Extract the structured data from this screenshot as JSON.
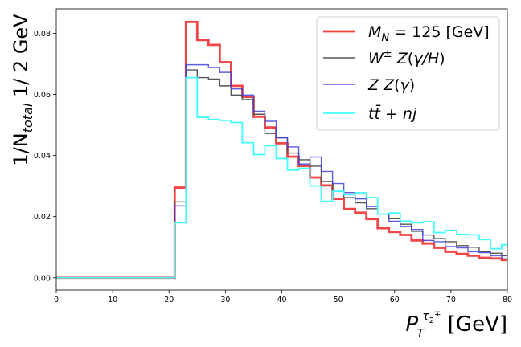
{
  "chart_data": {
    "type": "line",
    "step": true,
    "xlabel": "P_T^{τ2∓} [GeV]",
    "ylabel": "1/N_total 1/ 2 GeV",
    "xlim": [
      0,
      80
    ],
    "ylim": [
      -0.004,
      0.088
    ],
    "xticks": [
      0,
      10,
      20,
      30,
      40,
      50,
      60,
      70,
      80
    ],
    "yticks": [
      0.0,
      0.02,
      0.04,
      0.06,
      0.08
    ],
    "xtick_labels": [
      "0",
      "10",
      "20",
      "30",
      "40",
      "50",
      "60",
      "70",
      "80"
    ],
    "ytick_labels": [
      "0.00",
      "0.02",
      "0.04",
      "0.06",
      "0.08"
    ],
    "legend_position": "top-right",
    "grid": false,
    "x": [
      0,
      2,
      4,
      6,
      8,
      10,
      12,
      14,
      16,
      18,
      20,
      21,
      23,
      25,
      27,
      29,
      31,
      33,
      35,
      37,
      39,
      41,
      43,
      45,
      47,
      49,
      51,
      53,
      55,
      57,
      59,
      61,
      63,
      65,
      67,
      69,
      71,
      73,
      75,
      77,
      79,
      80
    ],
    "series": [
      {
        "name": "M_N = 125 [GeV]",
        "color": "#f03030",
        "width": 2.8,
        "opacity": 0.9,
        "values": [
          0,
          0,
          0,
          0,
          0,
          0,
          0,
          0,
          0,
          0,
          0,
          0.0295,
          0.0837,
          0.0778,
          0.0762,
          0.0705,
          0.0628,
          0.0592,
          0.0527,
          0.0492,
          0.044,
          0.0396,
          0.0366,
          0.0328,
          0.0302,
          0.0258,
          0.0225,
          0.0213,
          0.0192,
          0.0162,
          0.015,
          0.014,
          0.0122,
          0.0112,
          0.0098,
          0.0085,
          0.0078,
          0.0072,
          0.0065,
          0.0063,
          0.0058,
          0.0058
        ]
      },
      {
        "name": "W± Z(γ/H)",
        "color": "#555555",
        "width": 1.4,
        "opacity": 1,
        "values": [
          0,
          0,
          0,
          0,
          0,
          0,
          0,
          0,
          0,
          0,
          0,
          0.0248,
          0.068,
          0.0655,
          0.065,
          0.0628,
          0.0598,
          0.0583,
          0.0535,
          0.0472,
          0.0458,
          0.0408,
          0.0386,
          0.0365,
          0.0315,
          0.0283,
          0.0262,
          0.0245,
          0.0226,
          0.0208,
          0.0193,
          0.0175,
          0.0152,
          0.014,
          0.0128,
          0.0118,
          0.0105,
          0.01,
          0.0085,
          0.008,
          0.0072,
          0.0072
        ]
      },
      {
        "name": "Z Z(γ)",
        "color": "#4040e0",
        "width": 1.4,
        "opacity": 0.85,
        "values": [
          0,
          0,
          0,
          0,
          0,
          0,
          0,
          0,
          0,
          0,
          0,
          0.0235,
          0.0697,
          0.0697,
          0.0688,
          0.0672,
          0.0618,
          0.0598,
          0.0545,
          0.0512,
          0.0458,
          0.0428,
          0.0372,
          0.0395,
          0.0348,
          0.0308,
          0.0279,
          0.0258,
          0.0233,
          0.0208,
          0.0185,
          0.0168,
          0.0158,
          0.0122,
          0.0118,
          0.0102,
          0.0098,
          0.0085,
          0.0082,
          0.0072,
          0.0062,
          0.0062
        ]
      },
      {
        "name": "tt̄ + nj",
        "color": "#40ffff",
        "width": 1.8,
        "opacity": 1,
        "values": [
          0,
          0,
          0,
          0,
          0,
          0,
          0,
          0,
          0,
          0,
          0,
          0.018,
          0.0655,
          0.0525,
          0.0518,
          0.0515,
          0.0508,
          0.0442,
          0.0403,
          0.0432,
          0.039,
          0.0352,
          0.0358,
          0.03,
          0.025,
          0.0283,
          0.0272,
          0.0278,
          0.0262,
          0.0208,
          0.0212,
          0.0185,
          0.018,
          0.0183,
          0.0148,
          0.0155,
          0.0142,
          0.014,
          0.0125,
          0.0095,
          0.0108,
          0.0108
        ]
      }
    ]
  },
  "legend": {
    "items": [
      {
        "label": "M_N = 125 [GeV]",
        "html": "M<tspan font-size='13' dy='5'>N</tspan><tspan dy='-5' font-style='normal'> = 125 [GeV]</tspan>"
      },
      {
        "label": "W± Z(γ/H)"
      },
      {
        "label": "Z Z(γ)"
      },
      {
        "label": "tt̄ + nj"
      }
    ]
  }
}
